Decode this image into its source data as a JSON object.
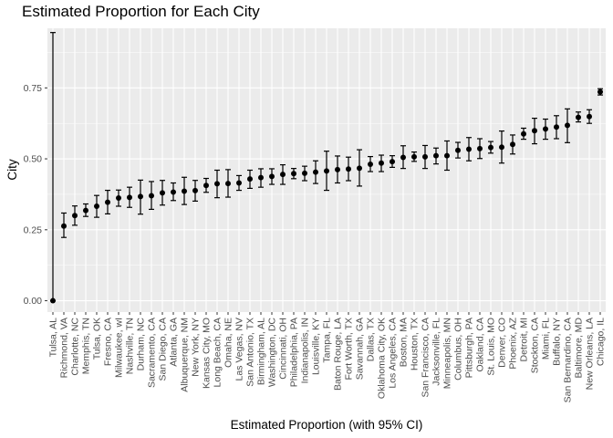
{
  "chart_data": {
    "type": "scatter",
    "title": "Estimated Proportion for Each City",
    "xlabel": "Estimated Proportion (with 95% CI)",
    "ylabel": "City",
    "ylim": [
      -0.04,
      0.96
    ],
    "yticks": [
      0.0,
      0.25,
      0.5,
      0.75
    ],
    "ytick_labels": [
      "0.00",
      "0.25",
      "0.50",
      "0.75"
    ],
    "grid": true,
    "panel_background": "#ebebeb",
    "point_color": "#000000",
    "categories": [
      "Tulsa, AL",
      "Richmond, VA",
      "Charlotte, NC",
      "Memphis, TN",
      "Tulsa, OK",
      "Fresno, CA",
      "Milwaukee, wI",
      "Nashville, TN",
      "Durham, NC",
      "Sacramento, CA",
      "San Diego, CA",
      "Atlanta, GA",
      "Albuquerque, NM",
      "New York, NY",
      "Kansas City, MO",
      "Long Beach, CA",
      "Omaha, NE",
      "Las Vegas, NV",
      "San Antonio, TX",
      "Birmingham, AL",
      "Washington, DC",
      "Cincinnati, OH",
      "Philadelphia, PA",
      "Indianapolis, IN",
      "Louisville, KY",
      "Tampa, FL",
      "Baton Rouge, LA",
      "Fort Worth, TX",
      "Savannah, GA",
      "Dallas, TX",
      "Oklahoma City, OK",
      "Los Angeles, CA",
      "Boston, MA",
      "Houston, TX",
      "San Francisco, CA",
      "Jacksonville, FL",
      "Minneapolis, MN",
      "Columbus, OH",
      "Pittsburgh, PA",
      "Oakland, CA",
      "St. Louis, MO",
      "Denver, CO",
      "Phoenix, AZ",
      "Detroit, MI",
      "Stockton, CA",
      "Miami, FL",
      "Buffalo, NY",
      "San Bernardino, CA",
      "Baltimore, MD",
      "New Orleans, LA",
      "Chicago, IL"
    ],
    "estimate": [
      0.0,
      0.263,
      0.3,
      0.318,
      0.333,
      0.347,
      0.362,
      0.364,
      0.367,
      0.37,
      0.38,
      0.383,
      0.386,
      0.388,
      0.406,
      0.412,
      0.413,
      0.415,
      0.429,
      0.434,
      0.438,
      0.445,
      0.448,
      0.449,
      0.453,
      0.457,
      0.462,
      0.464,
      0.467,
      0.481,
      0.485,
      0.49,
      0.505,
      0.507,
      0.507,
      0.511,
      0.511,
      0.53,
      0.534,
      0.536,
      0.54,
      0.541,
      0.551,
      0.588,
      0.599,
      0.605,
      0.612,
      0.618,
      0.646,
      0.649,
      0.736
    ],
    "conf_low": [
      0.0,
      0.223,
      0.266,
      0.297,
      0.294,
      0.306,
      0.333,
      0.329,
      0.305,
      0.322,
      0.337,
      0.353,
      0.339,
      0.351,
      0.382,
      0.363,
      0.365,
      0.389,
      0.396,
      0.4,
      0.41,
      0.41,
      0.43,
      0.423,
      0.413,
      0.389,
      0.415,
      0.423,
      0.404,
      0.455,
      0.455,
      0.47,
      0.466,
      0.491,
      0.466,
      0.482,
      0.46,
      0.503,
      0.493,
      0.501,
      0.52,
      0.485,
      0.517,
      0.569,
      0.553,
      0.569,
      0.571,
      0.557,
      0.63,
      0.625,
      0.725
    ],
    "conf_high": [
      0.945,
      0.309,
      0.334,
      0.341,
      0.371,
      0.389,
      0.39,
      0.4,
      0.425,
      0.42,
      0.424,
      0.415,
      0.435,
      0.424,
      0.431,
      0.46,
      0.462,
      0.441,
      0.46,
      0.465,
      0.465,
      0.479,
      0.466,
      0.474,
      0.493,
      0.527,
      0.51,
      0.506,
      0.532,
      0.508,
      0.513,
      0.511,
      0.546,
      0.524,
      0.547,
      0.538,
      0.563,
      0.558,
      0.575,
      0.571,
      0.561,
      0.598,
      0.584,
      0.608,
      0.643,
      0.64,
      0.652,
      0.676,
      0.665,
      0.673,
      0.747
    ]
  }
}
